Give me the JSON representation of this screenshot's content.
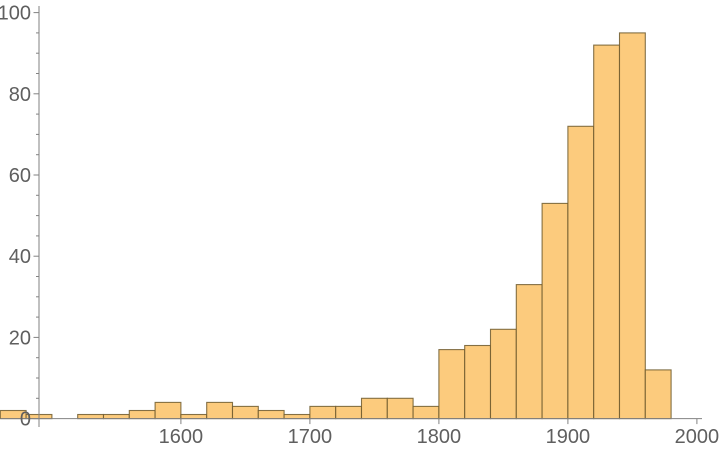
{
  "chart_data": {
    "type": "bar",
    "subtype": "histogram",
    "title": "",
    "xlabel": "",
    "ylabel": "",
    "legend_position": "none",
    "grid": "off",
    "bin_width": 20,
    "bin_edges": [
      1460,
      1480,
      1500,
      1520,
      1540,
      1560,
      1580,
      1600,
      1620,
      1640,
      1660,
      1680,
      1700,
      1720,
      1740,
      1760,
      1780,
      1800,
      1820,
      1840,
      1860,
      1880,
      1900,
      1920,
      1940,
      1960,
      1980,
      2000
    ],
    "counts": [
      2,
      1,
      0,
      1,
      1,
      2,
      4,
      1,
      4,
      3,
      2,
      1,
      3,
      3,
      5,
      5,
      3,
      17,
      18,
      22,
      33,
      53,
      72,
      92,
      95,
      12,
      0
    ],
    "x_range": [
      1460,
      2010
    ],
    "ylim": [
      0,
      100
    ],
    "x_tick_values": [
      1600,
      1700,
      1800,
      1900,
      2000
    ],
    "x_tick_labels": [
      "1600",
      "1700",
      "1800",
      "1900",
      "2000"
    ],
    "y_tick_values": [
      0,
      20,
      40,
      60,
      80,
      100
    ],
    "y_tick_labels": [
      "0",
      "20",
      "40",
      "60",
      "80",
      "100"
    ],
    "y_minor_tick_step": 5,
    "axes_origin_x": 1490,
    "colors": {
      "bar_fill": "#FCCB7D",
      "bar_edge": "#6F5A2E",
      "axis_line": "#828282",
      "tick_label": "#5F5F5F",
      "background": "#FFFFFF"
    }
  }
}
